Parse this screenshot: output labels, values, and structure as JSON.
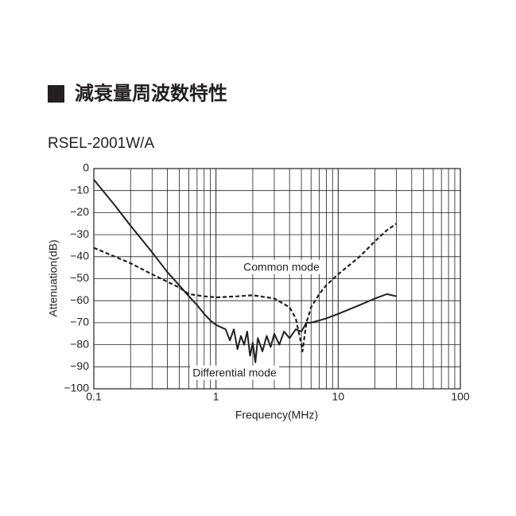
{
  "chart_data": {
    "type": "line",
    "title": "減衰量周波数特性",
    "subtitle": "RSEL-2001W/A",
    "x_label": "Frequency(MHz)",
    "y_label": "Attenuation(dB)",
    "xscale": "log",
    "grid": true,
    "xlim": [
      0.1,
      100
    ],
    "xticks": [
      0.1,
      1,
      10,
      100
    ],
    "ylim": [
      -100,
      0
    ],
    "yticks": [
      0,
      {
        "value": -10,
        "label": "−10"
      },
      {
        "value": -20,
        "label": "−20"
      },
      {
        "value": -30,
        "label": "−30"
      },
      {
        "value": -40,
        "label": "−40"
      },
      {
        "value": -50,
        "label": "−50"
      },
      {
        "value": -60,
        "label": "−60"
      },
      {
        "value": -70,
        "label": "−70"
      },
      {
        "value": -80,
        "label": "−80"
      },
      {
        "value": -90,
        "label": "−90"
      },
      {
        "value": -100,
        "label": "−100"
      }
    ],
    "series": [
      {
        "name": "Common mode",
        "color": "#231f20",
        "line_style": "dashed",
        "x": [
          0.1,
          0.2,
          0.3,
          0.5,
          0.6,
          0.8,
          1,
          1.5,
          2,
          3,
          4,
          4.5,
          5,
          5.1,
          5.5,
          6,
          7,
          8,
          10,
          15,
          20,
          25,
          30
        ],
        "values": [
          -36,
          -43,
          -48,
          -54,
          -57,
          -58,
          -58.5,
          -58,
          -57.5,
          -59,
          -63,
          -68,
          -80,
          -83,
          -70,
          -63,
          -57,
          -53,
          -48,
          -40,
          -33,
          -28,
          -25
        ]
      },
      {
        "name": "Differential mode",
        "color": "#231f20",
        "line_style": "solid",
        "x": [
          0.1,
          0.15,
          0.2,
          0.3,
          0.4,
          0.5,
          0.6,
          0.7,
          0.8,
          0.9,
          1,
          1.2,
          1.3,
          1.4,
          1.5,
          1.6,
          1.7,
          1.8,
          1.9,
          2.0,
          2.1,
          2.2,
          2.4,
          2.6,
          2.8,
          3.0,
          3.3,
          3.6,
          4.0,
          4.5,
          5,
          5.5,
          6,
          7,
          8,
          10,
          15,
          20,
          25,
          30
        ],
        "values": [
          -5,
          -17,
          -26,
          -38,
          -47,
          -53,
          -58,
          -62,
          -66,
          -69,
          -71,
          -73,
          -78,
          -73,
          -82,
          -76,
          -80,
          -74,
          -85,
          -79,
          -88,
          -77,
          -83,
          -76,
          -81,
          -75,
          -80,
          -74,
          -77,
          -73,
          -74,
          -70,
          -70,
          -69,
          -68,
          -66,
          -62,
          -59,
          -57,
          -58
        ]
      }
    ],
    "annotations": [
      "Common mode",
      "Differential mode"
    ]
  }
}
